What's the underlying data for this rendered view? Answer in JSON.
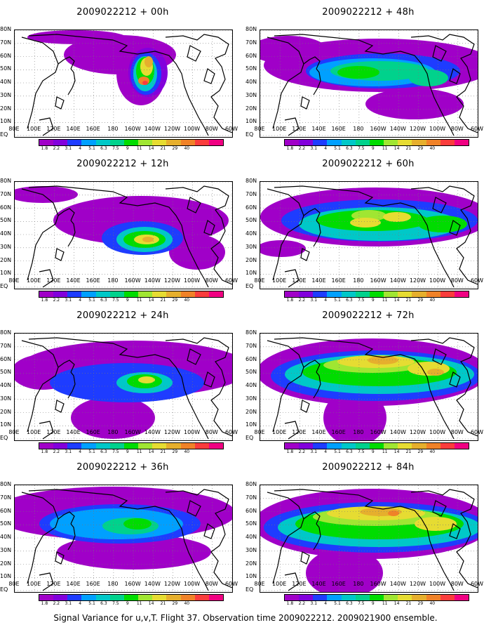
{
  "panels": [
    {
      "title": "2009022212 + 00h"
    },
    {
      "title": "2009022212 + 48h"
    },
    {
      "title": "2009022212 + 12h"
    },
    {
      "title": "2009022212 + 60h"
    },
    {
      "title": "2009022212 + 24h"
    },
    {
      "title": "2009022212 + 72h"
    },
    {
      "title": "2009022212 + 36h"
    },
    {
      "title": "2009022212 + 84h"
    }
  ],
  "lat_labels": [
    "80N",
    "70N",
    "60N",
    "50N",
    "40N",
    "30N",
    "20N",
    "10N",
    "EQ"
  ],
  "lon_labels": [
    "80E",
    "100E",
    "120E",
    "140E",
    "160E",
    "180",
    "160W",
    "140W",
    "120W",
    "100W",
    "80W",
    "60W"
  ],
  "colorbar": {
    "labels": [
      "1.8",
      "2.2",
      "3.1",
      "4",
      "5.1",
      "6.3",
      "7.5",
      "9",
      "11",
      "14",
      "21",
      "29",
      "40"
    ],
    "colors": [
      "#a000c8",
      "#8200dc",
      "#1e3cff",
      "#00a0ff",
      "#00c8c8",
      "#00d28c",
      "#00dc00",
      "#a0e632",
      "#e6dc32",
      "#e6af2d",
      "#f08228",
      "#fa3c3c",
      "#f00082"
    ]
  },
  "caption": "Signal Variance for u,v,T. Flight 37. Observation time 2009022212. 2009021900 ensemble."
}
